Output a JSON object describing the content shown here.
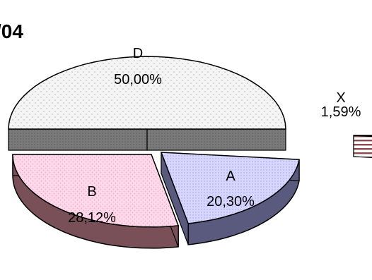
{
  "chart_data": {
    "type": "pie",
    "title": "/04",
    "slices": [
      {
        "label": "D",
        "value": 50.0,
        "value_label": "50,00%",
        "color": "#f4f4f4"
      },
      {
        "label": "X",
        "value": 1.59,
        "value_label": "1,59%",
        "color": "#fff0f0"
      },
      {
        "label": "A",
        "value": 20.3,
        "value_label": "20,30%",
        "color": "#d4d4ff"
      },
      {
        "label": "B",
        "value": 28.12,
        "value_label": "28,12%",
        "color": "#ffd6e8"
      }
    ],
    "style": "3d-exploded"
  }
}
